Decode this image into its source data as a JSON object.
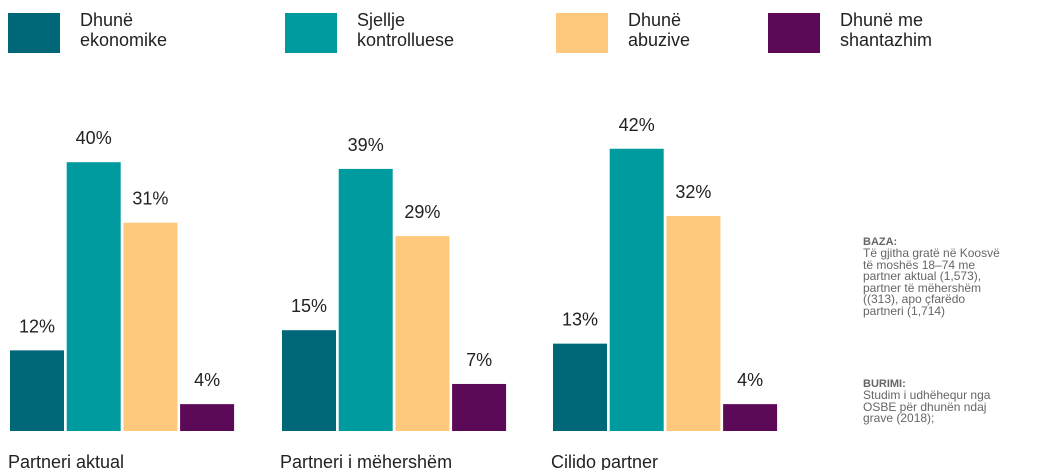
{
  "chart_data": {
    "type": "bar",
    "categories": [
      "Partneri aktual",
      "Partneri i mëhershëm",
      "Cilido partner"
    ],
    "series": [
      {
        "name": "Dhunë\nekonomike",
        "color": "#006778",
        "values": [
          12,
          15,
          13
        ],
        "value_labels": [
          "12%",
          "15%",
          "13%"
        ]
      },
      {
        "name": "Sjellje\nkontrolluese",
        "color": "#009b9e",
        "values": [
          40,
          39,
          42
        ],
        "value_labels": [
          "40%",
          "39%",
          "42%"
        ]
      },
      {
        "name": "Dhunë\nabuzive",
        "color": "#ffc97d",
        "values": [
          31,
          29,
          32
        ],
        "value_labels": [
          "31%",
          "29%",
          "32%"
        ]
      },
      {
        "name": "Dhunë me\nshantazhim",
        "color": "#5c0a57",
        "values": [
          4,
          7,
          4
        ],
        "value_labels": [
          "4%",
          "7%",
          "4%"
        ]
      }
    ],
    "annotations": [
      {
        "heading": "BAZA:",
        "text": "Të gjitha gratë në Koosvë\ntë moshës  18–74 me\npartner aktual  (1,573),\npartner të mëhershëm\n((313), apo çfarëdo\npartneri (1,714)"
      },
      {
        "heading": "BURIMI:",
        "text": "Studim i udhëhequr nga\nOSBE për dhunën ndaj\ngrave (2018);"
      }
    ]
  }
}
